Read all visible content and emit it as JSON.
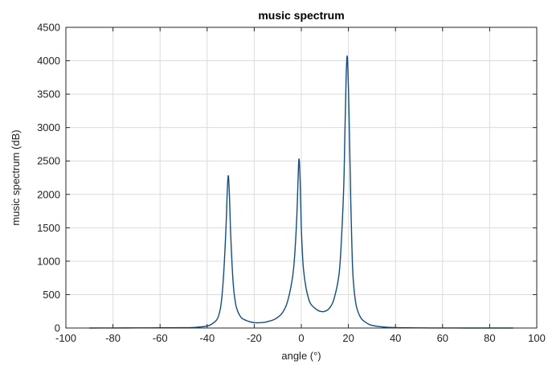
{
  "chart_data": {
    "type": "line",
    "title": "music spectrum",
    "xlabel": "angle (°)",
    "ylabel": "music spectrum (dB)",
    "xlim": [
      -100,
      100
    ],
    "ylim": [
      0,
      4500
    ],
    "xticks": [
      "-100",
      "-80",
      "-60",
      "-40",
      "-20",
      "0",
      "20",
      "40",
      "60",
      "80",
      "100"
    ],
    "yticks": [
      "0",
      "500",
      "1000",
      "1500",
      "2000",
      "2500",
      "3000",
      "3500",
      "4000",
      "4500"
    ],
    "grid": true,
    "line_color": "#0d4f8b",
    "series": [
      {
        "x": [
          -90,
          -80,
          -70,
          -60,
          -50,
          -45,
          -40,
          -38,
          -36,
          -35,
          -34,
          -33,
          -32,
          -31.5,
          -31,
          -30.5,
          -30,
          -29,
          -28,
          -27,
          -26,
          -25,
          -22,
          -20,
          -17,
          -15,
          -12,
          -10,
          -8,
          -6,
          -4,
          -3,
          -2,
          -1.5,
          -1,
          -0.5,
          0,
          0.5,
          1,
          2,
          3,
          4,
          6,
          8,
          10,
          12,
          14,
          16,
          17,
          18,
          18.5,
          19,
          19.5,
          20,
          20.5,
          21,
          21.5,
          22,
          23,
          24,
          25,
          26,
          28,
          30,
          35,
          40,
          50,
          60,
          70,
          80,
          90
        ],
        "y": [
          0,
          1,
          2,
          3,
          5,
          10,
          30,
          60,
          120,
          200,
          380,
          800,
          1500,
          2000,
          2280,
          1950,
          1400,
          700,
          380,
          250,
          180,
          140,
          95,
          80,
          80,
          90,
          120,
          160,
          230,
          380,
          700,
          1000,
          1600,
          2100,
          2530,
          2200,
          1500,
          1100,
          850,
          600,
          450,
          360,
          290,
          250,
          250,
          300,
          450,
          800,
          1300,
          2100,
          2900,
          3700,
          4070,
          3600,
          2800,
          1900,
          1200,
          750,
          400,
          250,
          170,
          120,
          70,
          40,
          15,
          6,
          2,
          1,
          0,
          0,
          0
        ]
      }
    ]
  }
}
